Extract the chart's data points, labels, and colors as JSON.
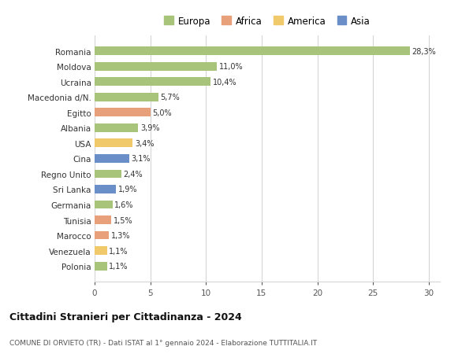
{
  "countries": [
    "Romania",
    "Moldova",
    "Ucraina",
    "Macedonia d/N.",
    "Egitto",
    "Albania",
    "USA",
    "Cina",
    "Regno Unito",
    "Sri Lanka",
    "Germania",
    "Tunisia",
    "Marocco",
    "Venezuela",
    "Polonia"
  ],
  "values": [
    28.3,
    11.0,
    10.4,
    5.7,
    5.0,
    3.9,
    3.4,
    3.1,
    2.4,
    1.9,
    1.6,
    1.5,
    1.3,
    1.1,
    1.1
  ],
  "labels": [
    "28,3%",
    "11,0%",
    "10,4%",
    "5,7%",
    "5,0%",
    "3,9%",
    "3,4%",
    "3,1%",
    "2,4%",
    "1,9%",
    "1,6%",
    "1,5%",
    "1,3%",
    "1,1%",
    "1,1%"
  ],
  "categories": [
    "Europa",
    "Europa",
    "Europa",
    "Europa",
    "Africa",
    "Europa",
    "America",
    "Asia",
    "Europa",
    "Asia",
    "Europa",
    "Africa",
    "Africa",
    "America",
    "Europa"
  ],
  "colors": {
    "Europa": "#a8c47a",
    "Africa": "#e8a07a",
    "America": "#f0c96a",
    "Asia": "#6a8fc8"
  },
  "legend_labels": [
    "Europa",
    "Africa",
    "America",
    "Asia"
  ],
  "legend_colors": [
    "#a8c47a",
    "#e8a07a",
    "#f0c96a",
    "#6a8fc8"
  ],
  "title": "Cittadini Stranieri per Cittadinanza - 2024",
  "subtitle": "COMUNE DI ORVIETO (TR) - Dati ISTAT al 1° gennaio 2024 - Elaborazione TUTTITALIA.IT",
  "xlim": [
    0,
    31
  ],
  "xticks": [
    0,
    5,
    10,
    15,
    20,
    25,
    30
  ],
  "background_color": "#ffffff",
  "grid_color": "#d5d5d5",
  "bar_height": 0.55
}
